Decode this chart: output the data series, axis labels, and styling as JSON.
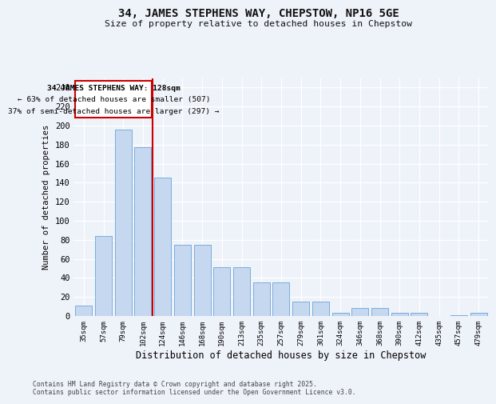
{
  "title_line1": "34, JAMES STEPHENS WAY, CHEPSTOW, NP16 5GE",
  "title_line2": "Size of property relative to detached houses in Chepstow",
  "xlabel": "Distribution of detached houses by size in Chepstow",
  "ylabel": "Number of detached properties",
  "categories": [
    "35sqm",
    "57sqm",
    "79sqm",
    "102sqm",
    "124sqm",
    "146sqm",
    "168sqm",
    "190sqm",
    "213sqm",
    "235sqm",
    "257sqm",
    "279sqm",
    "301sqm",
    "324sqm",
    "346sqm",
    "368sqm",
    "390sqm",
    "412sqm",
    "435sqm",
    "457sqm",
    "479sqm"
  ],
  "values": [
    11,
    84,
    196,
    177,
    145,
    75,
    75,
    51,
    51,
    35,
    35,
    15,
    15,
    3,
    8,
    8,
    3,
    3,
    0,
    1,
    3
  ],
  "bar_color": "#c5d8f0",
  "bar_edge_color": "#7aaddc",
  "background_color": "#eef2f9",
  "fig_background_color": "#eef2f9",
  "grid_color": "#ffffff",
  "red_line_x": 3.5,
  "annotation_text_line1": "34 JAMES STEPHENS WAY: 128sqm",
  "annotation_text_line2": "← 63% of detached houses are smaller (507)",
  "annotation_text_line3": "37% of semi-detached houses are larger (297) →",
  "annotation_box_color": "#cc0000",
  "ylim": [
    0,
    250
  ],
  "yticks": [
    0,
    20,
    40,
    60,
    80,
    100,
    120,
    140,
    160,
    180,
    200,
    220,
    240
  ],
  "footer_line1": "Contains HM Land Registry data © Crown copyright and database right 2025.",
  "footer_line2": "Contains public sector information licensed under the Open Government Licence v3.0."
}
